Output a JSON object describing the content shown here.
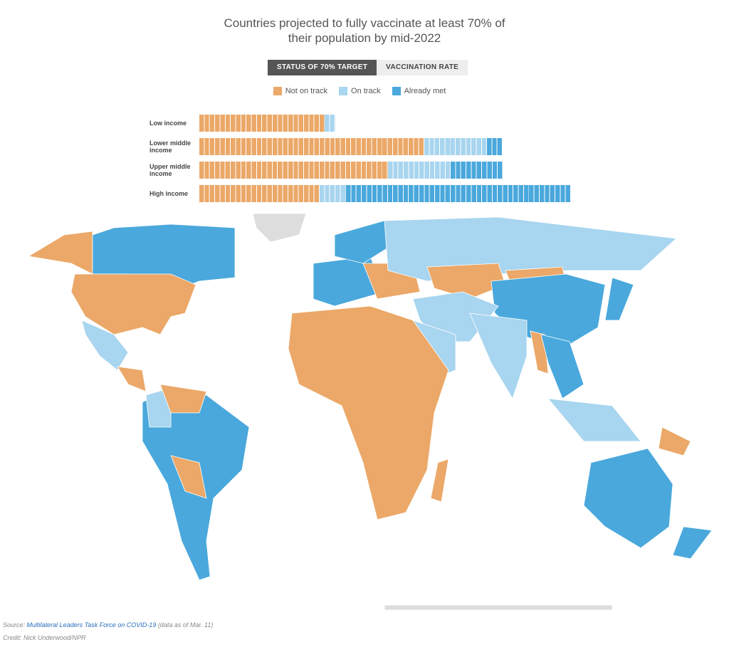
{
  "chart_data": {
    "type": "unit-bar",
    "title": "Countries projected to fully vaccinate at least 70% of their population by mid-2022",
    "tabs": [
      "STATUS OF 70% TARGET",
      "VACCINATION RATE"
    ],
    "categories": [
      "Low income",
      "Lower middle income",
      "Upper middle income",
      "High income"
    ],
    "series": [
      {
        "name": "Not on track",
        "color": "#eba868",
        "values": [
          24,
          43,
          36,
          23
        ]
      },
      {
        "name": "On track",
        "color": "#a8d5ef",
        "values": [
          2,
          12,
          12,
          5
        ]
      },
      {
        "name": "Already met",
        "color": "#4aa8dc",
        "values": [
          0,
          3,
          10,
          43
        ]
      }
    ]
  },
  "source": {
    "label": "Source:",
    "link": "Multilateral Leaders Task Force on COVID-19",
    "note": "(data as of Mar. 11)",
    "credit": "Credit: Nick Underwood/NPR"
  }
}
